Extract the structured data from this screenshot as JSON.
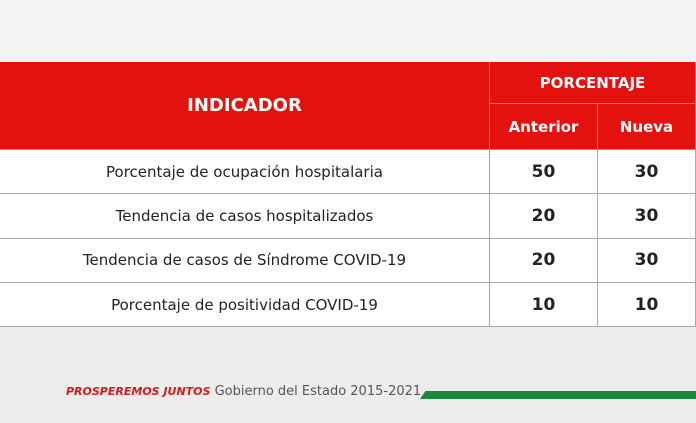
{
  "table": {
    "header": {
      "indicator": "INDICADOR",
      "group": "PORCENTAJE",
      "columns": [
        "Anterior",
        "Nueva"
      ]
    },
    "rows": [
      [
        "Porcentaje de ocupación hospitalaria",
        50,
        30
      ],
      [
        "Tendencia de casos hospitalizados",
        20,
        30
      ],
      [
        "Tendencia de casos de Síndrome COVID-19",
        20,
        30
      ],
      [
        "Porcentaje de positividad COVID-19",
        10,
        10
      ]
    ]
  },
  "footer": {
    "slogan": "PROSPEREMOS JUNTOS",
    "government": "Gobierno del Estado 2015-2021"
  }
}
